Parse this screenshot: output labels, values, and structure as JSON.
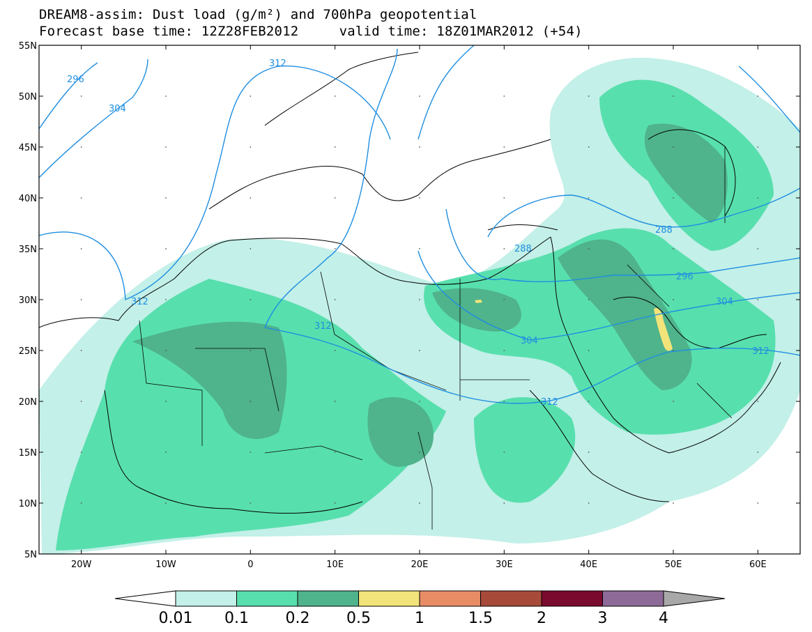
{
  "title": {
    "line1": "DREAM8-assim: Dust load (g/m²) and 700hPa geopotential",
    "line2": "Forecast base time: 12Z28FEB2012     valid time: 18Z01MAR2012 (+54)"
  },
  "map": {
    "lon_range": [
      -25,
      65
    ],
    "lat_range": [
      5,
      55
    ],
    "lat_labels": [
      "55N",
      "50N",
      "45N",
      "40N",
      "35N",
      "30N",
      "25N",
      "20N",
      "15N",
      "10N",
      "5N"
    ],
    "lon_labels": [
      "20W",
      "10W",
      "0",
      "10E",
      "20E",
      "30E",
      "40E",
      "50E",
      "60E"
    ],
    "contour_color": "#1f8ee0",
    "contour_labels": [
      "296",
      "304",
      "312",
      "312",
      "312",
      "312",
      "312",
      "304",
      "296",
      "304",
      "288",
      "288"
    ]
  },
  "colorbar": {
    "labels": [
      "0.01",
      "0.1",
      "0.2",
      "0.5",
      "1",
      "1.5",
      "2",
      "3",
      "4"
    ],
    "colors": [
      "#c3f0e8",
      "#58dfae",
      "#4fb38c",
      "#f2e37a",
      "#e88c66",
      "#a84a3a",
      "#7a0a2e",
      "#8e6a98"
    ],
    "under_color": "#ffffff",
    "over_color": "#a8a8a8"
  }
}
